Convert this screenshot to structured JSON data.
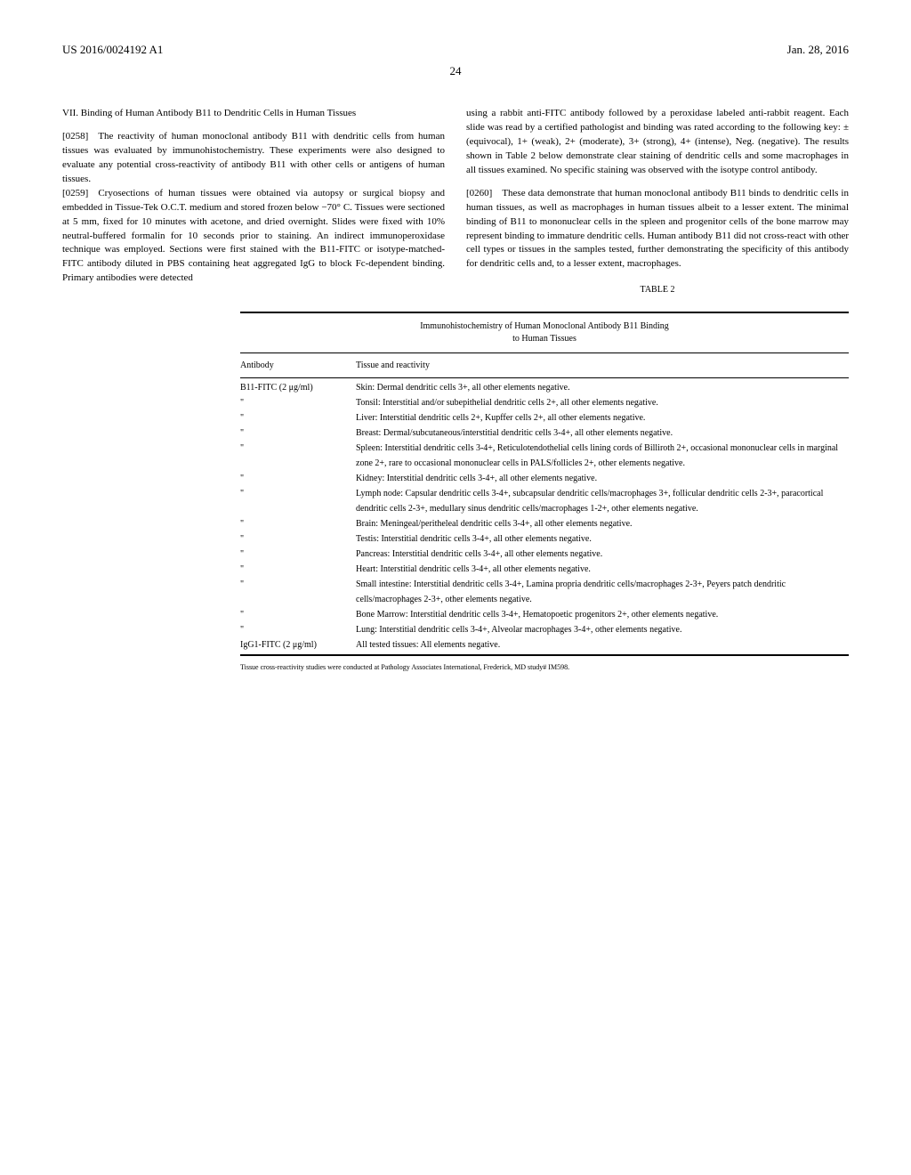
{
  "header": {
    "patent_number": "US 2016/0024192 A1",
    "date": "Jan. 28, 2016",
    "page_number": "24"
  },
  "section7": {
    "title": "VII. Binding of Human Antibody B11 to Dendritic Cells in Human Tissues"
  },
  "paragraphs": {
    "p0258": "[0258] The reactivity of human monoclonal antibody B11 with dendritic cells from human tissues was evaluated by immunohistochemistry. These experiments were also designed to evaluate any potential cross-reactivity of antibody B11 with other cells or antigens of human tissues.",
    "p0259": "[0259] Cryosections of human tissues were obtained via autopsy or surgical biopsy and embedded in Tissue-Tek O.C.T. medium and stored frozen below −70° C. Tissues were sectioned at 5 mm, fixed for 10 minutes with acetone, and dried overnight. Slides were fixed with 10% neutral-buffered formalin for 10 seconds prior to staining. An indirect immunoperoxidase technique was employed. Sections were first stained with the B11-FITC or isotype-matched-FITC antibody diluted in PBS containing heat aggregated IgG to block Fc-dependent binding. Primary antibodies were detected",
    "col2_top": "using a rabbit anti-FITC antibody followed by a peroxidase labeled anti-rabbit reagent. Each slide was read by a certified pathologist and binding was rated according to the following key: ±(equivocal), 1+ (weak), 2+ (moderate), 3+ (strong), 4+ (intense), Neg. (negative). The results shown in Table 2 below demonstrate clear staining of dendritic cells and some macrophages in all tissues examined. No specific staining was observed with the isotype control antibody.",
    "p0260": "[0260] These data demonstrate that human monoclonal antibody B11 binds to dendritic cells in human tissues, as well as macrophages in human tissues albeit to a lesser extent. The minimal binding of B11 to mononuclear cells in the spleen and progenitor cells of the bone marrow may represent binding to immature dendritic cells. Human antibody B11 did not cross-react with other cell types or tissues in the samples tested, further demonstrating the specificity of this antibody for dendritic cells and, to a lesser extent, macrophages."
  },
  "table2": {
    "label": "TABLE 2",
    "caption_line1": "Immunohistochemistry of Human Monoclonal Antibody B11 Binding",
    "caption_line2": "to Human Tissues",
    "header_antibody": "Antibody",
    "header_tissue": "Tissue and reactivity",
    "rows": [
      {
        "ab": "B11-FITC (2 μg/ml)",
        "tissue": "Skin: Dermal dendritic cells 3+, all other elements negative."
      },
      {
        "ab": "\"",
        "tissue": "Tonsil: Interstitial and/or subepithelial dendritic cells 2+, all other elements negative."
      },
      {
        "ab": "\"",
        "tissue": "Liver: Interstitial dendritic cells 2+, Kupffer cells 2+, all other elements negative."
      },
      {
        "ab": "\"",
        "tissue": "Breast: Dermal/subcutaneous/interstitial dendritic cells 3-4+, all other elements negative."
      },
      {
        "ab": "\"",
        "tissue": "Spleen: Interstitial dendritic cells 3-4+, Reticulotendothelial cells lining cords of Billiroth 2+, occasional mononuclear cells in marginal zone 2+, rare to occasional mononuclear cells in PALS/follicles 2+, other elements negative."
      },
      {
        "ab": "\"",
        "tissue": "Kidney: Interstitial dendritic cells 3-4+, all other elements negative."
      },
      {
        "ab": "\"",
        "tissue": "Lymph node: Capsular dendritic cells 3-4+, subcapsular dendritic cells/macrophages 3+, follicular dendritic cells 2-3+, paracortical dendritic cells 2-3+, medullary sinus dendritic cells/macrophages 1-2+, other elements negative."
      },
      {
        "ab": "\"",
        "tissue": "Brain: Meningeal/peritheleal dendritic cells 3-4+, all other elements negative."
      },
      {
        "ab": "\"",
        "tissue": "Testis: Interstitial dendritic cells 3-4+, all other elements negative."
      },
      {
        "ab": "\"",
        "tissue": "Pancreas: Interstitial dendritic cells 3-4+, all other elements negative."
      },
      {
        "ab": "\"",
        "tissue": "Heart: Interstitial dendritic cells 3-4+, all other elements negative."
      },
      {
        "ab": "\"",
        "tissue": "Small intestine: Interstitial dendritic cells 3-4+, Lamina propria dendritic cells/macrophages 2-3+, Peyers patch dendritic cells/macrophages 2-3+, other elements negative."
      },
      {
        "ab": "\"",
        "tissue": "Bone Marrow: Interstitial dendritic cells 3-4+, Hematopoetic progenitors 2+, other elements negative."
      },
      {
        "ab": "\"",
        "tissue": "Lung: Interstitial dendritic cells 3-4+, Alveolar macrophages 3-4+, other elements negative."
      },
      {
        "ab": "IgG1-FITC (2 μg/ml)",
        "tissue": "All tested tissues: All elements negative."
      }
    ],
    "footnote": "Tissue cross-reactivity studies were conducted at Pathology Associates International, Frederick, MD study# IM598."
  }
}
